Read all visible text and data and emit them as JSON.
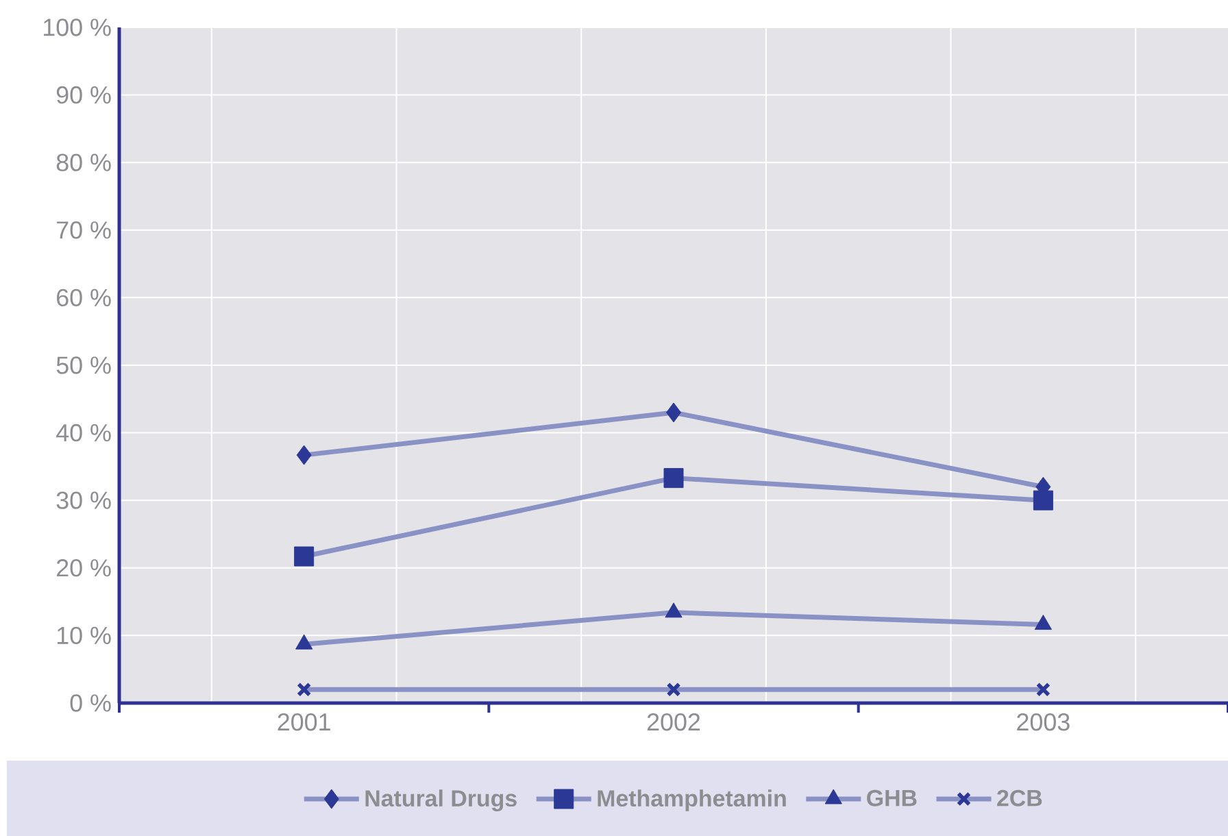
{
  "chart_data": {
    "type": "line",
    "categories": [
      "2001",
      "2002",
      "2003"
    ],
    "series": [
      {
        "name": "Natural Drugs",
        "color": "#2b3896",
        "marker": "diamond",
        "values": [
          36.7,
          43,
          32
        ]
      },
      {
        "name": "Methamphetamin",
        "color": "#2b3896",
        "marker": "square",
        "values": [
          21.7,
          33.3,
          30
        ]
      },
      {
        "name": "GHB",
        "color": "#2b3896",
        "marker": "triangle",
        "values": [
          8.7,
          13.4,
          11.6
        ]
      },
      {
        "name": "2CB",
        "color": "#2b3896",
        "marker": "cross",
        "values": [
          2,
          2,
          2
        ]
      }
    ],
    "ylim": [
      0,
      100
    ],
    "yticks": [
      {
        "value": 0,
        "label": "0 %"
      },
      {
        "value": 10,
        "label": "10 %"
      },
      {
        "value": 20,
        "label": "20 %"
      },
      {
        "value": 30,
        "label": "30 %"
      },
      {
        "value": 40,
        "label": "40 %"
      },
      {
        "value": 50,
        "label": "50 %"
      },
      {
        "value": 60,
        "label": "60 %"
      },
      {
        "value": 70,
        "label": "70 %"
      },
      {
        "value": 80,
        "label": "80 %"
      },
      {
        "value": 90,
        "label": "90 %"
      },
      {
        "value": 100,
        "label": "100 %"
      }
    ],
    "grid": true,
    "legend": "bottom",
    "line_style": "solid"
  }
}
